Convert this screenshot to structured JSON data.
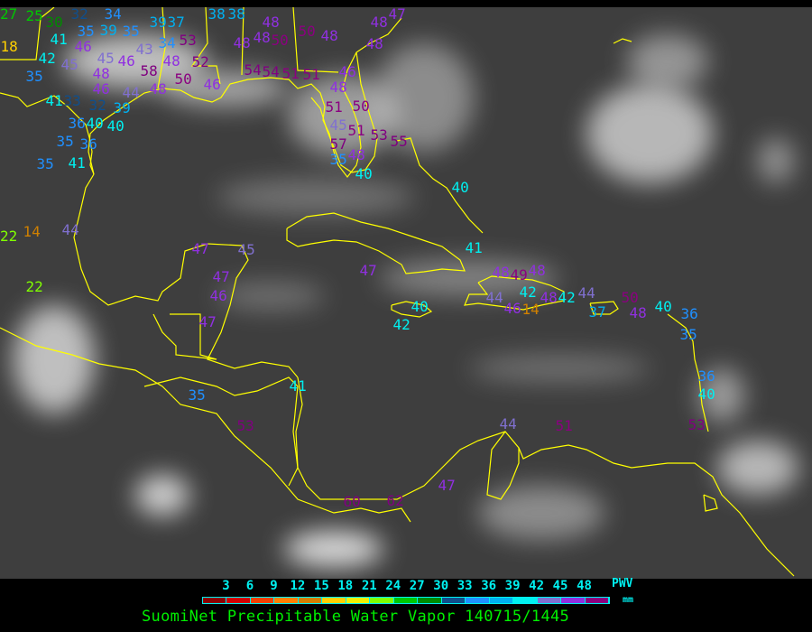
{
  "map": {
    "coastline_color": "#ffff00",
    "stations": [
      {
        "v": "27"
      },
      {
        "v": "25"
      },
      {
        "v": "30"
      },
      {
        "v": "32"
      },
      {
        "v": "35"
      },
      {
        "v": "34"
      },
      {
        "v": "41"
      },
      {
        "v": "18"
      },
      {
        "v": "39"
      },
      {
        "v": "35"
      },
      {
        "v": "39"
      },
      {
        "v": "37"
      },
      {
        "v": "38"
      },
      {
        "v": "38"
      },
      {
        "v": "48"
      },
      {
        "v": "48"
      },
      {
        "v": "50"
      },
      {
        "v": "50"
      },
      {
        "v": "48"
      },
      {
        "v": "46"
      },
      {
        "v": "42"
      },
      {
        "v": "45"
      },
      {
        "v": "35"
      },
      {
        "v": "43"
      },
      {
        "v": "34"
      },
      {
        "v": "48"
      },
      {
        "v": "53"
      },
      {
        "v": "52"
      },
      {
        "v": "58"
      },
      {
        "v": "50"
      },
      {
        "v": "48"
      },
      {
        "v": "45"
      },
      {
        "v": "46"
      },
      {
        "v": "48"
      },
      {
        "v": "46"
      },
      {
        "v": "48"
      },
      {
        "v": "46"
      },
      {
        "v": "54"
      },
      {
        "v": "54"
      },
      {
        "v": "51"
      },
      {
        "v": "51"
      },
      {
        "v": "46"
      },
      {
        "v": "48"
      },
      {
        "v": "51"
      },
      {
        "v": "41"
      },
      {
        "v": "33"
      },
      {
        "v": "32"
      },
      {
        "v": "39"
      },
      {
        "v": "44"
      },
      {
        "v": "36"
      },
      {
        "v": "40"
      },
      {
        "v": "35"
      },
      {
        "v": "36"
      },
      {
        "v": "40"
      },
      {
        "v": "41"
      },
      {
        "v": "35"
      },
      {
        "v": "47"
      },
      {
        "v": "48"
      },
      {
        "v": "48"
      },
      {
        "v": "50"
      },
      {
        "v": "45"
      },
      {
        "v": "51"
      },
      {
        "v": "53"
      },
      {
        "v": "55"
      },
      {
        "v": "57"
      },
      {
        "v": "35"
      },
      {
        "v": "48"
      },
      {
        "v": "40"
      },
      {
        "v": "40"
      },
      {
        "v": "41"
      },
      {
        "v": "47"
      },
      {
        "v": "48"
      },
      {
        "v": "49"
      },
      {
        "v": "48"
      },
      {
        "v": "42"
      },
      {
        "v": "14"
      },
      {
        "v": "44"
      },
      {
        "v": "46"
      },
      {
        "v": "48"
      },
      {
        "v": "42"
      },
      {
        "v": "44"
      },
      {
        "v": "37"
      },
      {
        "v": "50"
      },
      {
        "v": "48"
      },
      {
        "v": "40"
      },
      {
        "v": "36"
      },
      {
        "v": "35"
      },
      {
        "v": "40"
      },
      {
        "v": "42"
      },
      {
        "v": "22"
      },
      {
        "v": "14"
      },
      {
        "v": "44"
      },
      {
        "v": "47"
      },
      {
        "v": "45"
      },
      {
        "v": "47"
      },
      {
        "v": "46"
      },
      {
        "v": "47"
      },
      {
        "v": "22"
      },
      {
        "v": "35"
      },
      {
        "v": "41"
      },
      {
        "v": "53"
      },
      {
        "v": "44"
      },
      {
        "v": "51"
      },
      {
        "v": "47"
      },
      {
        "v": "60"
      },
      {
        "v": "62"
      },
      {
        "v": "36"
      },
      {
        "v": "40"
      },
      {
        "v": "53"
      }
    ]
  },
  "legend": {
    "ticks": [
      "3",
      "6",
      "9",
      "12",
      "15",
      "18",
      "21",
      "24",
      "27",
      "30",
      "33",
      "36",
      "39",
      "42",
      "45",
      "48"
    ],
    "colors": [
      "#8b0000",
      "#d00000",
      "#f04000",
      "#ff8000",
      "#d08000",
      "#ffd000",
      "#f0f000",
      "#80ff00",
      "#00c800",
      "#008c00",
      "#104f8c",
      "#2090ff",
      "#00b0f0",
      "#00f0f0",
      "#8070d0",
      "#9030e0",
      "#8b0080"
    ],
    "variable": "PWV",
    "unit": "mm",
    "title": "SuomiNet Precipitable Water Vapor 140715/1445"
  }
}
